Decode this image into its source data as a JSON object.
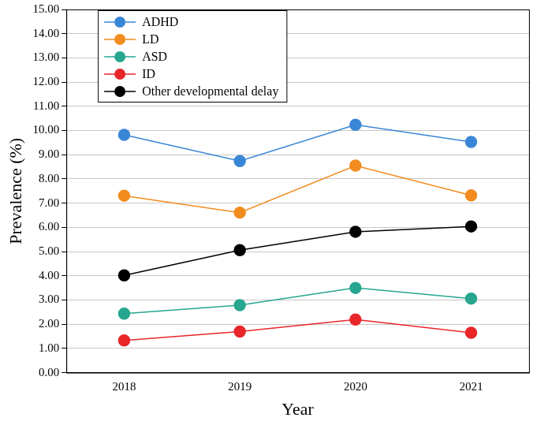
{
  "chart_data": {
    "type": "line",
    "x_label": "Year",
    "y_label": "Prevalence (%)",
    "categories": [
      "2018",
      "2019",
      "2020",
      "2021"
    ],
    "series": [
      {
        "name": "ADHD",
        "color": "#3a86d6",
        "values": [
          9.82,
          8.74,
          10.24,
          9.53
        ]
      },
      {
        "name": "LD",
        "color": "#f28c1e",
        "values": [
          7.31,
          6.61,
          8.55,
          7.32
        ]
      },
      {
        "name": "ASD",
        "color": "#26a68e",
        "values": [
          2.44,
          2.79,
          3.5,
          3.06
        ]
      },
      {
        "name": "ID",
        "color": "#e8262a",
        "values": [
          1.33,
          1.7,
          2.19,
          1.65
        ]
      },
      {
        "name": "Other developmental delay",
        "color": "#000000",
        "values": [
          4.02,
          5.06,
          5.82,
          6.04
        ]
      }
    ],
    "ylim": [
      0,
      15
    ],
    "yticks": [
      {
        "value": 0,
        "label": "0.00"
      },
      {
        "value": 1,
        "label": "1.00"
      },
      {
        "value": 2,
        "label": "2.00"
      },
      {
        "value": 3,
        "label": "3.00"
      },
      {
        "value": 4,
        "label": "4.00"
      },
      {
        "value": 5,
        "label": "5.00"
      },
      {
        "value": 6,
        "label": "6.00"
      },
      {
        "value": 7,
        "label": "7.00"
      },
      {
        "value": 8,
        "label": "8.00"
      },
      {
        "value": 9,
        "label": "9.00"
      },
      {
        "value": 10,
        "label": "10.00"
      },
      {
        "value": 11,
        "label": "11.00"
      },
      {
        "value": 12,
        "label": "12.00"
      },
      {
        "value": 13,
        "label": "13.00"
      },
      {
        "value": 14,
        "label": "14.00"
      },
      {
        "value": 15,
        "label": "15.00"
      }
    ],
    "grid": true,
    "legend": "top-left",
    "marker": "circle"
  }
}
